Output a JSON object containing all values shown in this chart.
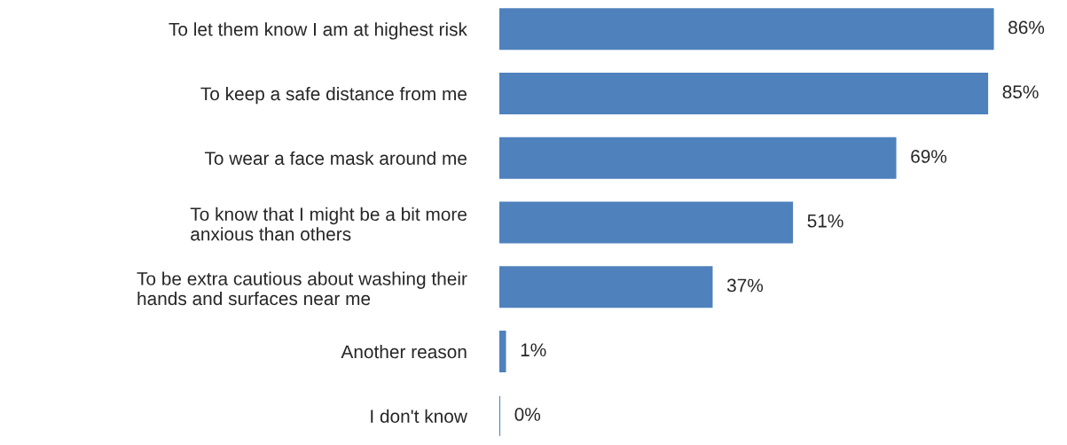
{
  "chart_data": {
    "type": "bar",
    "orientation": "horizontal",
    "categories": [
      "To let them know I am at highest risk",
      "To keep a safe distance from me",
      "To wear a face mask around me",
      "To know that I might be a bit more\nanxious than others",
      "To be extra cautious about washing their\nhands and surfaces near me",
      "Another reason",
      "I don't know"
    ],
    "values": [
      86,
      85,
      69,
      51,
      37,
      1,
      0
    ],
    "value_labels": [
      "86%",
      "85%",
      "69%",
      "51%",
      "37%",
      "1%",
      "0%"
    ],
    "color": "#4f81bd",
    "tick_labels": "y",
    "grid": false,
    "legend": false
  }
}
